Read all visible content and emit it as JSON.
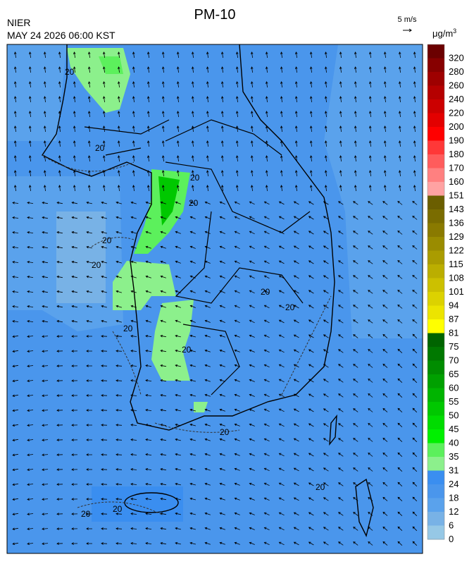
{
  "header": {
    "title": "PM-10",
    "source": "NIER",
    "datetime": "MAY 24 2026 06:00 KST"
  },
  "wind_scale": {
    "label": "5 m/s"
  },
  "colorbar": {
    "unit": "μg/m",
    "unit_exponent": "3",
    "items": [
      {
        "label": "320",
        "color": "#6b0000"
      },
      {
        "label": "280",
        "color": "#870000"
      },
      {
        "label": "260",
        "color": "#9e0000"
      },
      {
        "label": "240",
        "color": "#b50000"
      },
      {
        "label": "220",
        "color": "#cc0000"
      },
      {
        "label": "200",
        "color": "#e30000"
      },
      {
        "label": "190",
        "color": "#ff0000"
      },
      {
        "label": "180",
        "color": "#ff3838"
      },
      {
        "label": "170",
        "color": "#ff5c5c"
      },
      {
        "label": "160",
        "color": "#ff8080"
      },
      {
        "label": "151",
        "color": "#ffa2a2"
      },
      {
        "label": "143",
        "color": "#6b5e00"
      },
      {
        "label": "136",
        "color": "#7a6c00"
      },
      {
        "label": "129",
        "color": "#8a7a00"
      },
      {
        "label": "122",
        "color": "#9a8c00"
      },
      {
        "label": "115",
        "color": "#aa9c00"
      },
      {
        "label": "108",
        "color": "#bbae00"
      },
      {
        "label": "101",
        "color": "#ccc000"
      },
      {
        "label": "94",
        "color": "#dcd200"
      },
      {
        "label": "87",
        "color": "#ece400"
      },
      {
        "label": "81",
        "color": "#ffff00"
      },
      {
        "label": "75",
        "color": "#006400"
      },
      {
        "label": "70",
        "color": "#007800"
      },
      {
        "label": "65",
        "color": "#008c00"
      },
      {
        "label": "60",
        "color": "#00a000"
      },
      {
        "label": "55",
        "color": "#00b400"
      },
      {
        "label": "50",
        "color": "#00c800"
      },
      {
        "label": "45",
        "color": "#00dc00"
      },
      {
        "label": "40",
        "color": "#00f000"
      },
      {
        "label": "35",
        "color": "#5cf05c"
      },
      {
        "label": "31",
        "color": "#8cf08c"
      },
      {
        "label": "24",
        "color": "#3a8ef0"
      },
      {
        "label": "18",
        "color": "#4a96ec"
      },
      {
        "label": "12",
        "color": "#5aa2ec"
      },
      {
        "label": "6",
        "color": "#78b2e6"
      },
      {
        "label": "0",
        "color": "#96c8e6"
      }
    ]
  },
  "contour_labels": [
    "20",
    "20",
    "20",
    "20",
    "20",
    "20",
    "20",
    "20",
    "20",
    "20",
    "20",
    "20",
    "20",
    "20"
  ]
}
